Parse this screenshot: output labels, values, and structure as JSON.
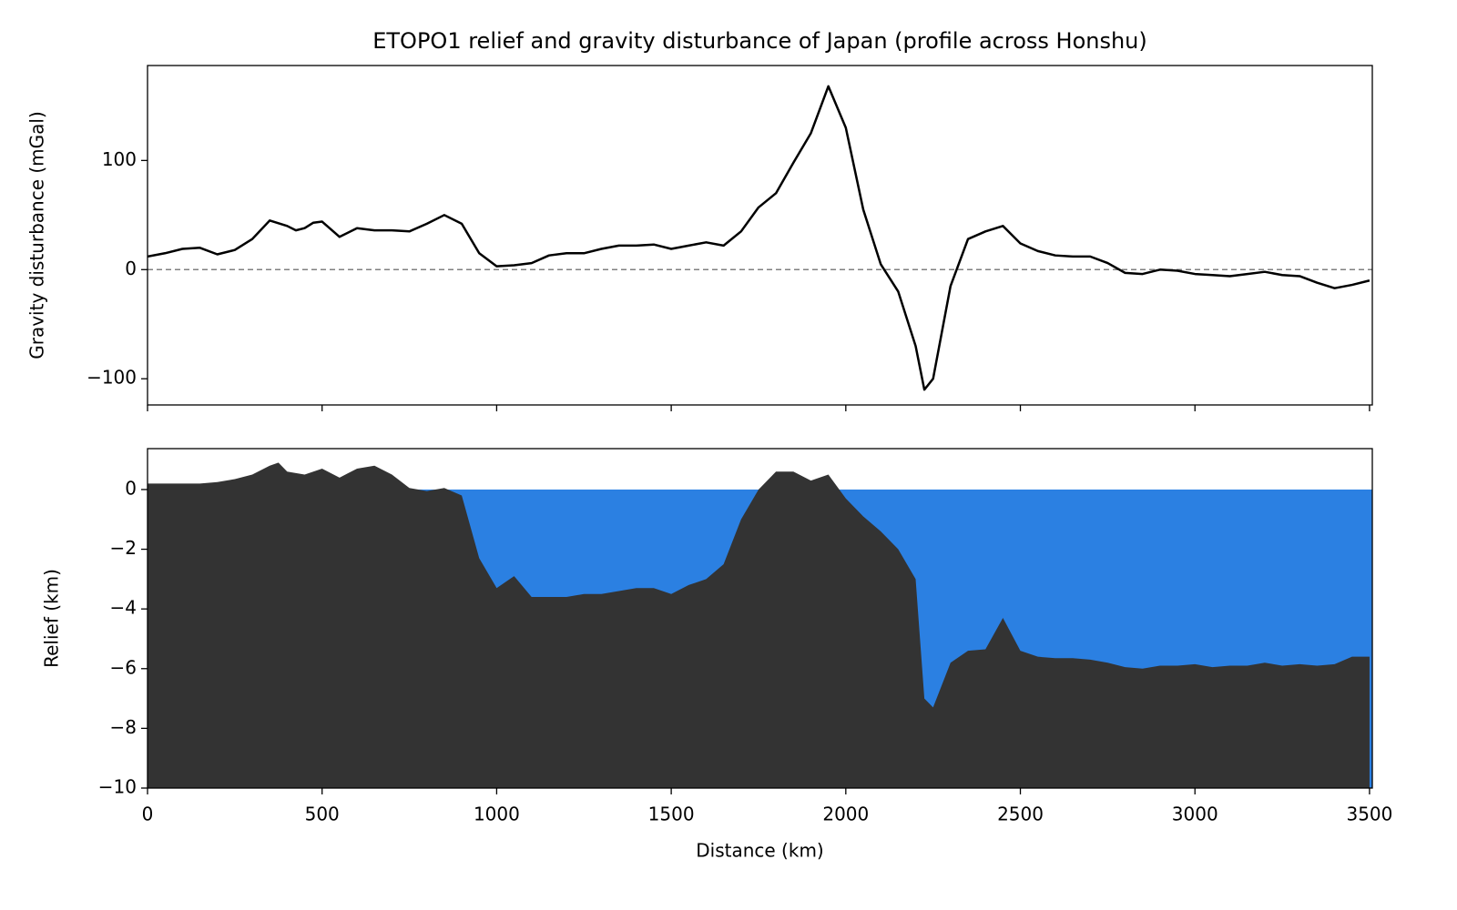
{
  "chart_data": [
    {
      "type": "line",
      "title": "ETOPO1 relief and gravity disturbance of Japan (profile across Honshu)",
      "y_label": "Gravity disturbance (mGal)",
      "color": "#000000",
      "zero_line_color": "#808080",
      "x": [
        0,
        50,
        100,
        150,
        200,
        250,
        300,
        350,
        400,
        425,
        450,
        475,
        500,
        550,
        600,
        650,
        700,
        750,
        800,
        850,
        900,
        950,
        1000,
        1050,
        1100,
        1150,
        1200,
        1250,
        1300,
        1350,
        1400,
        1450,
        1500,
        1550,
        1600,
        1650,
        1700,
        1750,
        1800,
        1850,
        1900,
        1950,
        2000,
        2050,
        2100,
        2150,
        2200,
        2225,
        2250,
        2300,
        2350,
        2400,
        2450,
        2500,
        2550,
        2600,
        2650,
        2700,
        2750,
        2800,
        2850,
        2900,
        2950,
        3000,
        3050,
        3100,
        3150,
        3200,
        3250,
        3300,
        3350,
        3400,
        3450,
        3500
      ],
      "values": [
        12,
        15,
        19,
        20,
        14,
        18,
        28,
        45,
        40,
        36,
        38,
        43,
        44,
        30,
        38,
        36,
        36,
        35,
        42,
        50,
        42,
        15,
        3,
        4,
        6,
        13,
        15,
        15,
        19,
        22,
        22,
        23,
        19,
        22,
        25,
        22,
        35,
        57,
        70,
        98,
        125,
        168,
        130,
        55,
        5,
        -20,
        -70,
        -110,
        -100,
        -15,
        28,
        35,
        40,
        24,
        17,
        13,
        12,
        12,
        6,
        -3,
        -4,
        0,
        -1,
        -4,
        -5,
        -6,
        -4,
        -2,
        -5,
        -6,
        -12,
        -17,
        -14,
        -10
      ],
      "xlim": [
        0,
        3508
      ],
      "xticks": [
        0,
        500,
        1000,
        1500,
        2000,
        2500,
        3000,
        3500
      ],
      "ylim": [
        -124,
        187
      ],
      "yticks": [
        {
          "value": -100,
          "label": "−100"
        },
        0,
        100
      ]
    },
    {
      "type": "area",
      "x_label": "Distance (km)",
      "y_label": "Relief (km)",
      "color": "#333333",
      "water_color": "#2b80e2",
      "x": [
        0,
        50,
        100,
        150,
        200,
        250,
        300,
        350,
        375,
        400,
        450,
        500,
        550,
        600,
        650,
        700,
        750,
        800,
        850,
        900,
        950,
        1000,
        1050,
        1100,
        1150,
        1200,
        1250,
        1300,
        1350,
        1400,
        1450,
        1500,
        1550,
        1600,
        1650,
        1700,
        1750,
        1800,
        1850,
        1900,
        1950,
        2000,
        2050,
        2100,
        2150,
        2200,
        2225,
        2250,
        2300,
        2350,
        2400,
        2450,
        2500,
        2550,
        2600,
        2650,
        2700,
        2750,
        2800,
        2850,
        2900,
        2950,
        3000,
        3050,
        3100,
        3150,
        3200,
        3250,
        3300,
        3350,
        3400,
        3450,
        3500
      ],
      "values": [
        0.2,
        0.2,
        0.2,
        0.2,
        0.25,
        0.35,
        0.5,
        0.8,
        0.9,
        0.6,
        0.5,
        0.7,
        0.4,
        0.7,
        0.8,
        0.5,
        0.05,
        -0.05,
        0.05,
        -0.2,
        -2.3,
        -3.3,
        -2.9,
        -3.6,
        -3.6,
        -3.6,
        -3.5,
        -3.5,
        -3.4,
        -3.3,
        -3.3,
        -3.5,
        -3.2,
        -3,
        -2.5,
        -1,
        0,
        0.6,
        0.6,
        0.3,
        0.5,
        -0.3,
        -0.9,
        -1.4,
        -2,
        -3,
        -7,
        -7.3,
        -5.8,
        -5.4,
        -5.35,
        -4.3,
        -5.4,
        -5.6,
        -5.65,
        -5.65,
        -5.7,
        -5.8,
        -5.95,
        -6,
        -5.9,
        -5.9,
        -5.85,
        -5.95,
        -5.9,
        -5.9,
        -5.8,
        -5.9,
        -5.85,
        -5.9,
        -5.85,
        -5.6,
        -5.6
      ],
      "xlim": [
        0,
        3508
      ],
      "xticks": [
        0,
        500,
        1000,
        1500,
        2000,
        2500,
        3000,
        3500
      ],
      "ylim": [
        -10,
        1.37
      ],
      "yticks": [
        {
          "value": -10,
          "label": "−10"
        },
        {
          "value": -8,
          "label": "−8"
        },
        {
          "value": -6,
          "label": "−6"
        },
        {
          "value": -4,
          "label": "−4"
        },
        {
          "value": -2,
          "label": "−2"
        },
        0
      ]
    }
  ]
}
